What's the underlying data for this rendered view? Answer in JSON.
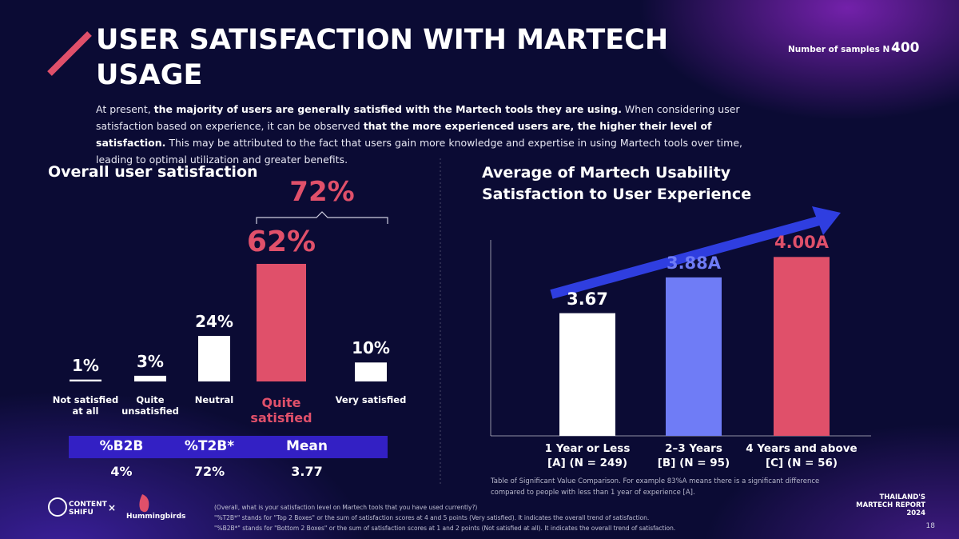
{
  "header": {
    "title": "USER SATISFACTION WITH MARTECH USAGE",
    "samples_label": "Number of samples N =",
    "samples_value": "400"
  },
  "intro": [
    {
      "text": "At present, ",
      "bold": false
    },
    {
      "text": "the majority of users are generally satisfied with the Martech tools they are using.",
      "bold": true
    },
    {
      "text": " When considering user satisfaction based on experience, it can be observed ",
      "bold": false
    },
    {
      "text": "that the more experienced users are, the higher their level of satisfaction.",
      "bold": true
    },
    {
      "text": " This may be attributed to the fact that users gain more knowledge and expertise in using Martech tools over time, leading to optimal utilization and greater benefits.",
      "bold": false
    }
  ],
  "chart_data": [
    {
      "type": "bar",
      "title": "Overall user satisfaction",
      "categories": [
        "Not satisfied at all",
        "Quite unsatisfied",
        "Neutral",
        "Quite satisfied",
        "Very satisfied"
      ],
      "values": [
        1,
        3,
        24,
        62,
        10
      ],
      "value_labels": [
        "1%",
        "3%",
        "24%",
        "62%",
        "10%"
      ],
      "colors": [
        "#ffffff",
        "#ffffff",
        "#ffffff",
        "#e0506a",
        "#ffffff"
      ],
      "ylim": [
        0,
        70
      ],
      "annotation": "72%"
    },
    {
      "type": "bar",
      "title": "Average of Martech Usability Satisfaction to User Experience",
      "categories": [
        "1 Year or Less",
        "2–3 Years",
        "4 Years and above"
      ],
      "category_sublabels": [
        "[A] (N = 249)",
        "[B] (N = 95)",
        "[C] (N = 56)"
      ],
      "values": [
        3.67,
        3.88,
        4.0
      ],
      "value_labels": [
        "3.67",
        "3.88A",
        "4.00A"
      ],
      "colors": [
        "#ffffff",
        "#6f7cf6",
        "#e0506a"
      ],
      "ylim": [
        2.95,
        4.1
      ],
      "note": "Table of Significant Value Comparison. For example 83%A means there is a significant difference compared to people with less than 1 year of experience [A]."
    }
  ],
  "summary_table": {
    "headers": [
      "%B2B",
      "%T2B*",
      "Mean"
    ],
    "rows": [
      [
        "4%",
        "72%",
        "3.77"
      ]
    ]
  },
  "footer": {
    "logo_1": "CONTENT SHIFU",
    "logo_sep": "×",
    "logo_2": "Hummingbirds",
    "notes": [
      "(Overall, what is your satisfaction level on Martech tools that you have used currently?)",
      "\"%T2B*\" stands for \"Top 2 Boxes\" or the sum of satisfaction scores at 4 and 5 points (Very satisfied). It indicates the overall trend of satisfaction.",
      "\"%B2B*\" stands for \"Bottom 2 Boxes\" or the sum of satisfaction scores at 1 and 2 points (Not satisfied at all). It indicates the overall trend of satisfaction."
    ],
    "report": [
      "THAILAND'S",
      "MARTECH REPORT",
      "2024"
    ],
    "page": "18"
  }
}
